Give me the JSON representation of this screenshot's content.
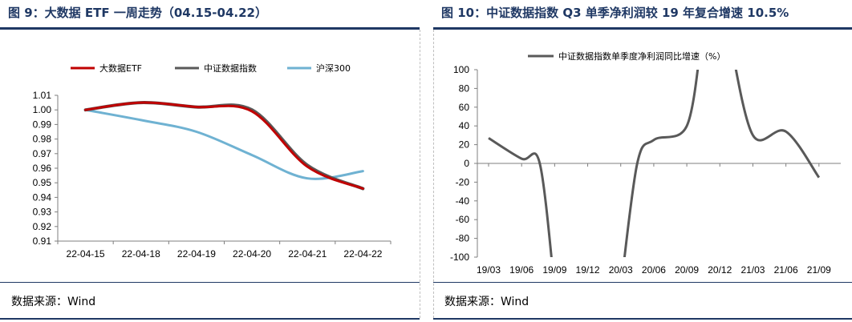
{
  "left": {
    "title": "图 9：大数据 ETF 一周走势（04.15-04.22）",
    "source": "数据来源：Wind"
  },
  "right": {
    "title": "图 10：中证数据指数 Q3 单季净利润较 19 年复合增速 10.5%",
    "source": "数据来源：Wind"
  },
  "chart_data": [
    {
      "type": "line",
      "categories": [
        "22-04-15",
        "22-04-18",
        "22-04-19",
        "22-04-20",
        "22-04-21",
        "22-04-22"
      ],
      "ylim": [
        0.91,
        1.01
      ],
      "yticks": [
        "1.01",
        "1.00",
        "0.99",
        "0.98",
        "0.97",
        "0.96",
        "0.95",
        "0.94",
        "0.93",
        "0.92",
        "0.91"
      ],
      "legend_position": "top",
      "series": [
        {
          "name": "大数据ETF",
          "color": "#c00000",
          "values": [
            1.0,
            1.005,
            1.002,
            0.999,
            0.961,
            0.946
          ]
        },
        {
          "name": "中证数据指数",
          "color": "#595959",
          "values": [
            1.0,
            1.005,
            1.002,
            1.0,
            0.962,
            0.946
          ]
        },
        {
          "name": "沪深300",
          "color": "#6fb2d2",
          "values": [
            1.0,
            0.993,
            0.985,
            0.969,
            0.953,
            0.958
          ]
        }
      ]
    },
    {
      "type": "line",
      "x": [
        "19/03",
        "19/06",
        "19/09",
        "19/12",
        "20/03",
        "20/06",
        "20/09",
        "20/12",
        "21/03",
        "21/06",
        "21/09"
      ],
      "ylim": [
        -100,
        100
      ],
      "yticks": [
        "100",
        "80",
        "60",
        "40",
        "20",
        "0",
        "-20",
        "-40",
        "-60",
        "-80",
        "-100"
      ],
      "legend_position": "top",
      "series": [
        {
          "name": "中证数据指数单季度净利润同比增速（%）",
          "color": "#595959",
          "values": [
            27,
            5,
            -100,
            null,
            -100,
            25,
            40,
            100,
            30,
            34,
            -15
          ]
        }
      ]
    }
  ]
}
